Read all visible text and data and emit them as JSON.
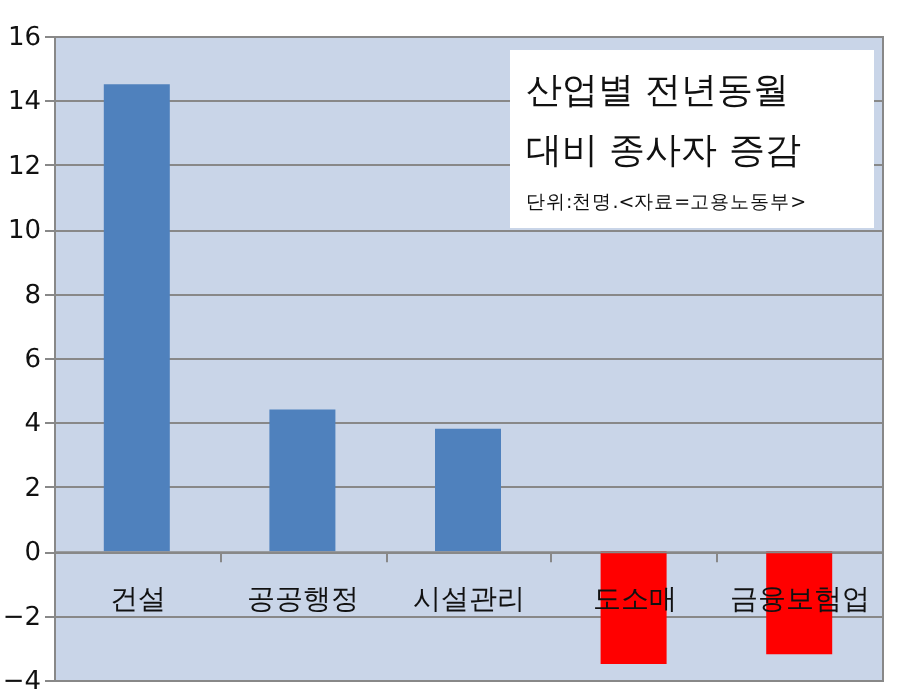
{
  "chart_data": {
    "type": "bar",
    "title": "산업별 전년동월 대비 종사자 증감",
    "subtitle": "단위:천명.<자료=고용노동부>",
    "categories": [
      "건설",
      "공공행정",
      "시설관리",
      "도소매",
      "금융보험업"
    ],
    "values": [
      14.5,
      4.4,
      3.8,
      -3.5,
      -3.2
    ],
    "colors": [
      "#4f81bd",
      "#4f81bd",
      "#4f81bd",
      "#ff0000",
      "#ff0000"
    ],
    "ylim": [
      -4,
      16
    ],
    "yticks": [
      -4,
      -2,
      0,
      2,
      4,
      6,
      8,
      10,
      12,
      14,
      16
    ],
    "grid": "y"
  }
}
